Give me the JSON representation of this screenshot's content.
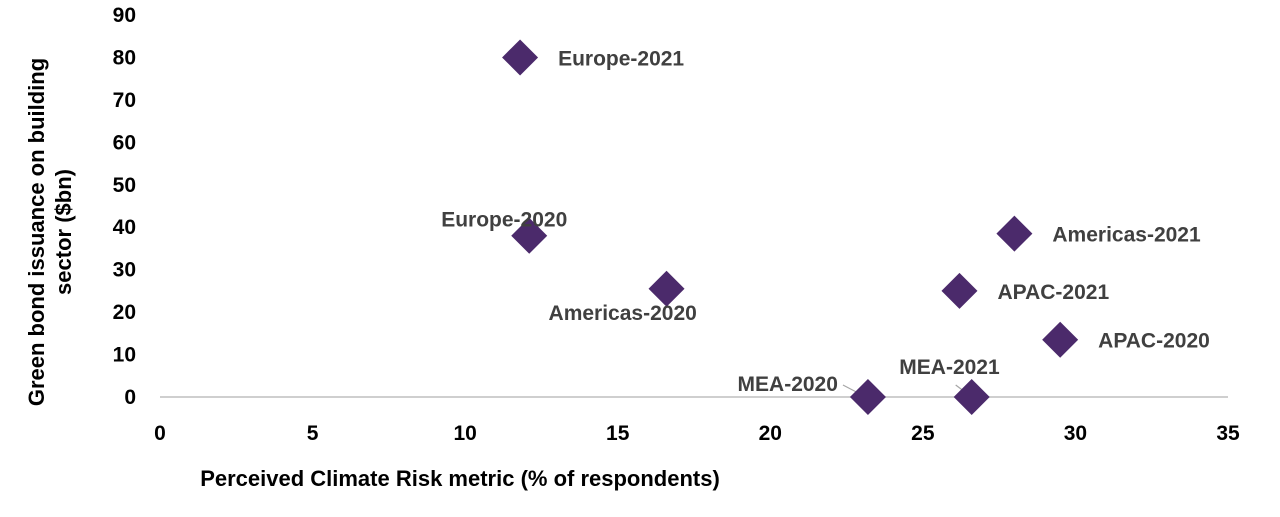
{
  "chart_data": {
    "type": "scatter",
    "xlabel": "Perceived Climate Risk metric (% of respondents)",
    "ylabel": "Green bond issuance on building sector ($bn)",
    "xlim": [
      0,
      35
    ],
    "ylim": [
      0,
      90
    ],
    "x_ticks": [
      "0",
      "5",
      "10",
      "15",
      "20",
      "25",
      "30",
      "35"
    ],
    "y_ticks": [
      "0",
      "10",
      "20",
      "30",
      "40",
      "50",
      "60",
      "70",
      "80",
      "90"
    ],
    "grid": false,
    "marker": "diamond",
    "marker_color": "#4b2a6b",
    "points": [
      {
        "label": "Europe-2021",
        "x": 11.8,
        "y": 80
      },
      {
        "label": "Europe-2020",
        "x": 12.1,
        "y": 38
      },
      {
        "label": "Americas-2020",
        "x": 16.6,
        "y": 25.5
      },
      {
        "label": "Americas-2021",
        "x": 28.0,
        "y": 38.5
      },
      {
        "label": "APAC-2021",
        "x": 26.2,
        "y": 25
      },
      {
        "label": "APAC-2020",
        "x": 29.5,
        "y": 13.5
      },
      {
        "label": "MEA-2020",
        "x": 23.2,
        "y": 0
      },
      {
        "label": "MEA-2021",
        "x": 26.6,
        "y": 0
      }
    ]
  }
}
